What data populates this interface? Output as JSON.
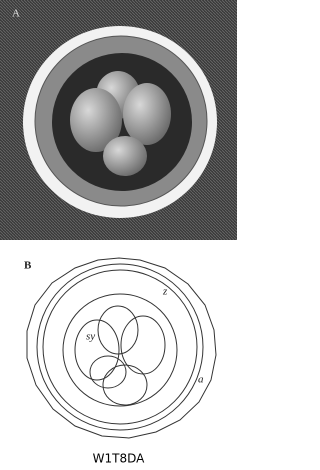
{
  "figure_a": {
    "label": "A"
  },
  "figure_b": {
    "label": "B",
    "labels": [
      "z",
      "sy",
      "a"
    ]
  },
  "watermark": {
    "id": "W1T8DA"
  }
}
